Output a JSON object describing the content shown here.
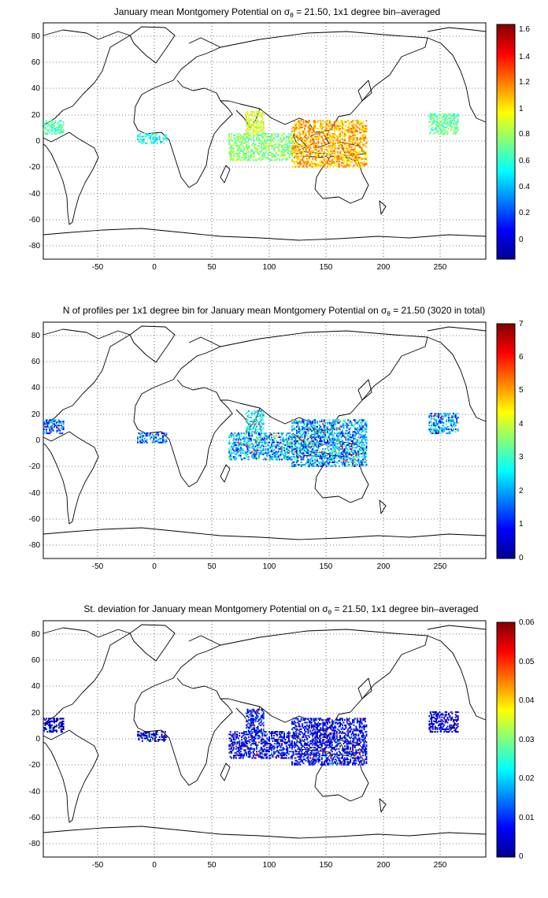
{
  "figure": {
    "x_ticks": [
      "-50",
      "0",
      "50",
      "100",
      "150",
      "200",
      "250"
    ],
    "y_ticks": [
      "80",
      "60",
      "40",
      "20",
      "0",
      "-20",
      "-40",
      "-60",
      "-80"
    ],
    "panels": [
      {
        "id": "mean",
        "title_pre": "January mean Montgomery Potential on ",
        "title_sym": "σ",
        "title_sub": "θ",
        "title_post": " = 21.50, 1x1 degree bin–averaged",
        "colorbar_ticks": [
          "1.6",
          "1.4",
          "1.2",
          "1",
          "0.8",
          "0.6",
          "0.4",
          "0.2",
          "0"
        ]
      },
      {
        "id": "count",
        "title_pre": "N of profiles per 1x1 degree bin for January mean Montgomery Potential on ",
        "title_sym": "σ",
        "title_sub": "θ",
        "title_post": " = 21.50 (3020 in total)",
        "colorbar_ticks": [
          "7",
          "6",
          "5",
          "4",
          "3",
          "2",
          "1",
          "0"
        ]
      },
      {
        "id": "std",
        "title_pre": "St. deviation for January mean Montgomery Potential on ",
        "title_sym": "σ",
        "title_sub": "θ",
        "title_post": " = 21.50, 1x1 degree bin–averaged",
        "colorbar_ticks": [
          "0.06",
          "0.05",
          "0.04",
          "0.03",
          "0.02",
          "0.01",
          "0"
        ]
      }
    ]
  },
  "chart_data": [
    {
      "type": "heatmap",
      "title": "January mean Montgomery Potential on σθ = 21.50, 1x1 degree bin–averaged",
      "xlim": [
        -97,
        290
      ],
      "ylim": [
        -90,
        90
      ],
      "x_ticks": [
        -50,
        0,
        50,
        100,
        150,
        200,
        250
      ],
      "y_ticks": [
        -80,
        -60,
        -40,
        -20,
        0,
        20,
        40,
        60,
        80
      ],
      "grid": true,
      "colormap": "jet",
      "clim": [
        -0.18,
        1.65
      ],
      "colorbar_ticks": [
        0,
        0.2,
        0.4,
        0.6,
        0.8,
        1,
        1.2,
        1.4,
        1.6
      ],
      "data_regions": [
        {
          "region": "Bay of Bengal",
          "lon": [
            80,
            95
          ],
          "lat": [
            5,
            22
          ],
          "value": 0.9
        },
        {
          "region": "Eastern Indian Ocean",
          "lon": [
            65,
            120
          ],
          "lat": [
            -15,
            5
          ],
          "value": 0.75
        },
        {
          "region": "Western Pacific",
          "lon": [
            120,
            185
          ],
          "lat": [
            -20,
            15
          ],
          "value": 1.1
        },
        {
          "region": "Eastern Pacific",
          "lon": [
            240,
            265
          ],
          "lat": [
            5,
            20
          ],
          "value": 0.7
        },
        {
          "region": "Caribbean",
          "lon": [
            -97,
            -80
          ],
          "lat": [
            5,
            15
          ],
          "value": 0.65
        },
        {
          "region": "Gulf of Guinea",
          "lon": [
            -15,
            10
          ],
          "lat": [
            -2,
            5
          ],
          "value": 0.55
        }
      ]
    },
    {
      "type": "heatmap",
      "title": "N of profiles per 1x1 degree bin for January mean Montgomery Potential on σθ = 21.50 (3020 in total)",
      "xlim": [
        -97,
        290
      ],
      "ylim": [
        -90,
        90
      ],
      "x_ticks": [
        -50,
        0,
        50,
        100,
        150,
        200,
        250
      ],
      "y_ticks": [
        -80,
        -60,
        -40,
        -20,
        0,
        20,
        40,
        60,
        80
      ],
      "grid": true,
      "colormap": "jet",
      "clim": [
        0,
        7
      ],
      "colorbar_ticks": [
        0,
        1,
        2,
        3,
        4,
        5,
        6,
        7
      ],
      "total_profiles": 3020,
      "data_regions": [
        {
          "region": "Bay of Bengal",
          "lon": [
            80,
            95
          ],
          "lat": [
            5,
            22
          ],
          "value": 2
        },
        {
          "region": "Eastern Indian Ocean",
          "lon": [
            65,
            120
          ],
          "lat": [
            -15,
            5
          ],
          "value": 1.5
        },
        {
          "region": "Western Pacific",
          "lon": [
            120,
            185
          ],
          "lat": [
            -20,
            15
          ],
          "value": 1.5
        },
        {
          "region": "Eastern Pacific",
          "lon": [
            240,
            265
          ],
          "lat": [
            5,
            20
          ],
          "value": 1.5
        },
        {
          "region": "Caribbean",
          "lon": [
            -97,
            -80
          ],
          "lat": [
            5,
            15
          ],
          "value": 1
        },
        {
          "region": "Gulf of Guinea",
          "lon": [
            -15,
            10
          ],
          "lat": [
            -2,
            5
          ],
          "value": 1
        }
      ]
    },
    {
      "type": "heatmap",
      "title": "St. deviation for January mean Montgomery Potential on σθ = 21.50, 1x1 degree bin–averaged",
      "xlim": [
        -97,
        290
      ],
      "ylim": [
        -90,
        90
      ],
      "x_ticks": [
        -50,
        0,
        50,
        100,
        150,
        200,
        250
      ],
      "y_ticks": [
        -80,
        -60,
        -40,
        -20,
        0,
        20,
        40,
        60,
        80
      ],
      "grid": true,
      "colormap": "jet",
      "clim": [
        0,
        0.06
      ],
      "colorbar_ticks": [
        0,
        0.01,
        0.02,
        0.03,
        0.04,
        0.05,
        0.06
      ],
      "data_regions": [
        {
          "region": "Bay of Bengal",
          "lon": [
            80,
            95
          ],
          "lat": [
            5,
            22
          ],
          "value": 0.01
        },
        {
          "region": "Eastern Indian Ocean",
          "lon": [
            65,
            120
          ],
          "lat": [
            -15,
            5
          ],
          "value": 0.008
        },
        {
          "region": "Western Pacific",
          "lon": [
            120,
            185
          ],
          "lat": [
            -20,
            15
          ],
          "value": 0.008
        },
        {
          "region": "Eastern Pacific",
          "lon": [
            240,
            265
          ],
          "lat": [
            5,
            20
          ],
          "value": 0.006
        },
        {
          "region": "Caribbean",
          "lon": [
            -97,
            -80
          ],
          "lat": [
            5,
            15
          ],
          "value": 0.004
        },
        {
          "region": "Gulf of Guinea",
          "lon": [
            -15,
            10
          ],
          "lat": [
            -2,
            5
          ],
          "value": 0.004
        }
      ]
    }
  ]
}
